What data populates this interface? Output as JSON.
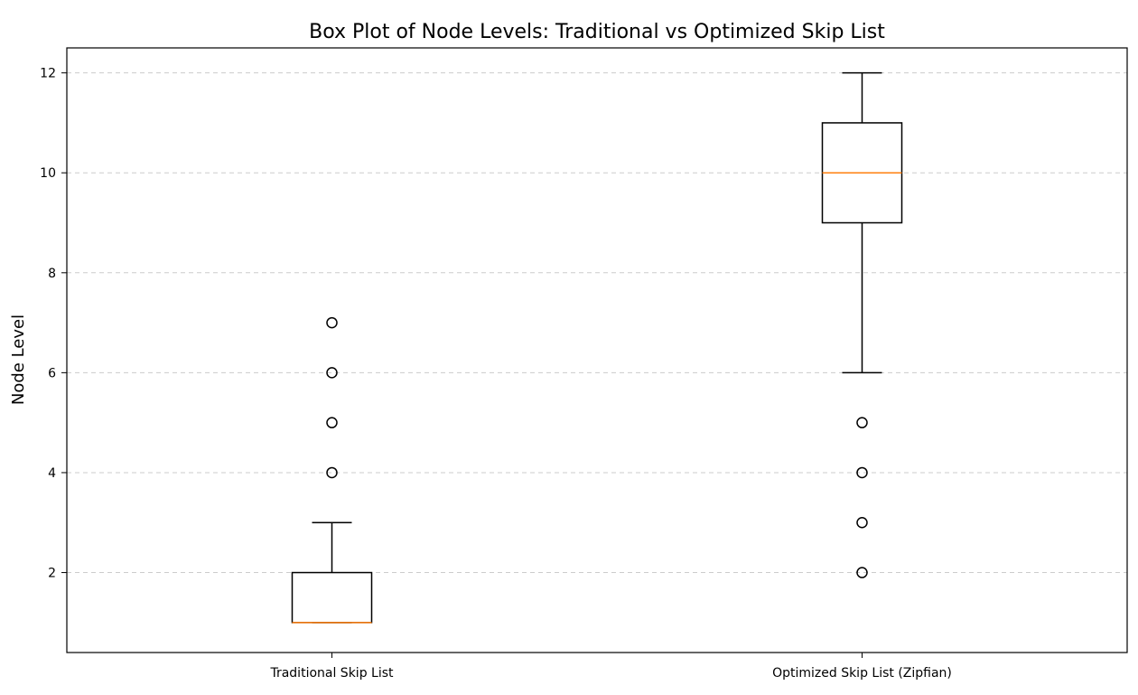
{
  "chart_data": {
    "type": "box",
    "title": "Box Plot of Node Levels: Traditional vs Optimized Skip List",
    "xlabel": "",
    "ylabel": "Node Level",
    "categories": [
      "Traditional Skip List",
      "Optimized Skip List (Zipfian)"
    ],
    "ylim": [
      0.4,
      12.5
    ],
    "yticks": [
      2,
      4,
      6,
      8,
      10,
      12
    ],
    "grid": {
      "y": true,
      "x": false,
      "style": "dashed"
    },
    "boxes": [
      {
        "category": "Traditional Skip List",
        "whisker_low": 1,
        "q1": 1,
        "median": 1,
        "q3": 2,
        "whisker_high": 3,
        "outliers": [
          4,
          5,
          6,
          7
        ]
      },
      {
        "category": "Optimized Skip List (Zipfian)",
        "whisker_low": 6,
        "q1": 9,
        "median": 10,
        "q3": 11,
        "whisker_high": 12,
        "outliers": [
          2,
          3,
          4,
          5
        ]
      }
    ],
    "colors": {
      "median": "#ff7f0e",
      "box": "#000000",
      "grid": "#cccccc"
    }
  }
}
